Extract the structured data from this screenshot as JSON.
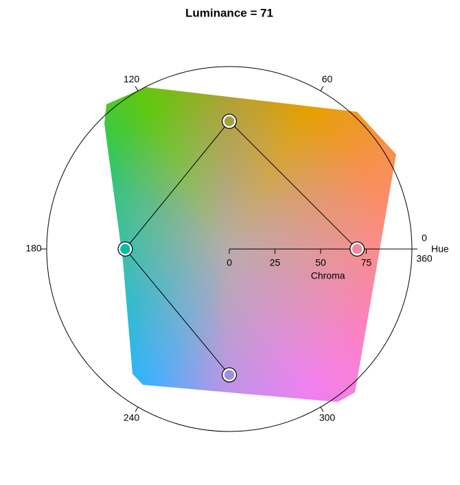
{
  "chart_data": {
    "type": "polar",
    "title": "Luminance = 71",
    "r_label": "Chroma",
    "theta_label": "Hue",
    "rlim": [
      0,
      100
    ],
    "rticks": [
      0,
      25,
      50,
      75
    ],
    "thetaticks": [
      0,
      60,
      120,
      180,
      240,
      300,
      360
    ],
    "hue": [
      0,
      90,
      180,
      270
    ],
    "chroma": [
      70,
      70,
      57,
      69
    ],
    "colors": [
      "#f08a9c",
      "#a3a040",
      "#00bfa0",
      "#a08fd8"
    ]
  }
}
